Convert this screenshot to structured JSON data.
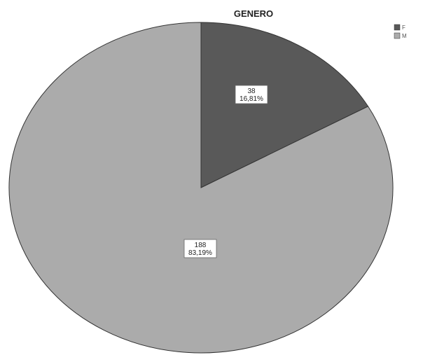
{
  "chart_data": {
    "type": "pie",
    "title": "GENERO",
    "categories": [
      "F",
      "M"
    ],
    "values": [
      38,
      188
    ],
    "percent_labels": [
      "16,81%",
      "83,19%"
    ],
    "colors": [
      "#595959",
      "#ababab"
    ],
    "legend_position": "top-right"
  }
}
